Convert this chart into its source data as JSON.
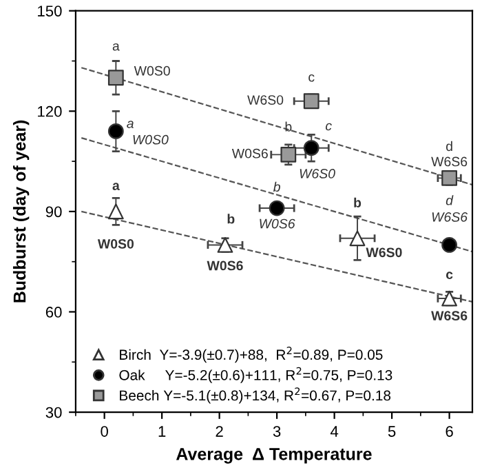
{
  "chart_data": {
    "type": "scatter",
    "xlabel": "Average  Δ Temperature",
    "ylabel": "Budburst (day of year)",
    "xlim": [
      -0.5,
      6.4
    ],
    "ylim": [
      30,
      150
    ],
    "xticks": [
      0,
      1,
      2,
      3,
      4,
      5,
      6
    ],
    "yticks": [
      30,
      60,
      90,
      120,
      150
    ],
    "grid": false,
    "legend": "bottom left",
    "series": [
      {
        "name": "Birch  Y=-3.9(±0.7)+88,  R$^{2}$=0.89, P=0.05",
        "color": "#ffffff",
        "marker": "triangle",
        "x": [
          0.2,
          2.1,
          4.4,
          6.0
        ],
        "values": [
          90,
          80,
          82,
          64
        ],
        "errors": [
          4,
          2,
          6.5,
          2
        ],
        "xerrors": [
          null,
          0.3,
          0.3,
          0.2
        ]
      },
      {
        "name": "Oak     Y=-5.2(±0.6)+111, R$^{2}$=0.75, P=0.13",
        "color": "#000000",
        "marker": "circle",
        "x": [
          0.2,
          3.0,
          3.6,
          6.0
        ],
        "values": [
          114,
          91,
          109,
          80
        ],
        "errors": [
          6,
          null,
          4,
          null
        ],
        "xerrors": [
          null,
          0.3,
          0.3,
          null
        ]
      },
      {
        "name": "Beech Y=-5.1(±0.8)+134, R$^{2}$=0.67, P=0.18",
        "color": "#999999",
        "marker": "square",
        "x": [
          0.2,
          3.2,
          3.6,
          6.0
        ],
        "values": [
          130,
          107,
          123,
          100
        ],
        "errors": [
          5,
          3,
          2,
          2
        ],
        "xerrors": [
          null,
          0.3,
          0.3,
          0.2
        ]
      },
      {
        "type": "line",
        "color": "#555555",
        "line_style": "dashed",
        "marker": "none",
        "x": [
          -0.4,
          6.4
        ],
        "values": [
          90,
          63
        ]
      },
      {
        "type": "line",
        "color": "#555555",
        "line_style": "dashed",
        "marker": "none",
        "x": [
          -0.4,
          6.4
        ],
        "values": [
          112,
          78
        ]
      },
      {
        "type": "line",
        "color": "#555555",
        "line_style": "dashed",
        "marker": "none",
        "x": [
          -0.4,
          6.4
        ],
        "values": [
          133,
          98
        ]
      }
    ],
    "annotations": [
      {
        "text": "a",
        "x": 0.2,
        "y": 130
      },
      {
        "text": "W0S0",
        "x": 0.2,
        "y": 130
      },
      {
        "text": "c",
        "x": 3.6,
        "y": 123
      },
      {
        "text": "W6S0",
        "x": 3.6,
        "y": 123
      },
      {
        "text": "b",
        "x": 3.2,
        "y": 107
      },
      {
        "text": "W0S6",
        "x": 3.2,
        "y": 107
      },
      {
        "text": "d",
        "x": 6.0,
        "y": 100
      },
      {
        "text": "W6S6",
        "x": 6.0,
        "y": 100
      },
      {
        "text": "a",
        "x": 0.2,
        "y": 114
      },
      {
        "text": "W0S0",
        "x": 0.2,
        "y": 114
      },
      {
        "text": "c",
        "x": 3.6,
        "y": 109
      },
      {
        "text": "W6S0",
        "x": 3.6,
        "y": 109
      },
      {
        "text": "b",
        "x": 3.0,
        "y": 91
      },
      {
        "text": "W0S6",
        "x": 3.0,
        "y": 91
      },
      {
        "text": "d",
        "x": 6.0,
        "y": 80
      },
      {
        "text": "W6S6",
        "x": 6.0,
        "y": 80
      },
      {
        "text": "a",
        "x": 0.2,
        "y": 90
      },
      {
        "text": "W0S0",
        "x": 0.2,
        "y": 90
      },
      {
        "text": "b",
        "x": 2.1,
        "y": 80
      },
      {
        "text": "W0S6",
        "x": 2.1,
        "y": 80
      },
      {
        "text": "b",
        "x": 4.4,
        "y": 82
      },
      {
        "text": "W6S0",
        "x": 4.4,
        "y": 82
      },
      {
        "text": "c",
        "x": 6.0,
        "y": 64
      },
      {
        "text": "W6S6",
        "x": 6.0,
        "y": 64
      }
    ]
  }
}
